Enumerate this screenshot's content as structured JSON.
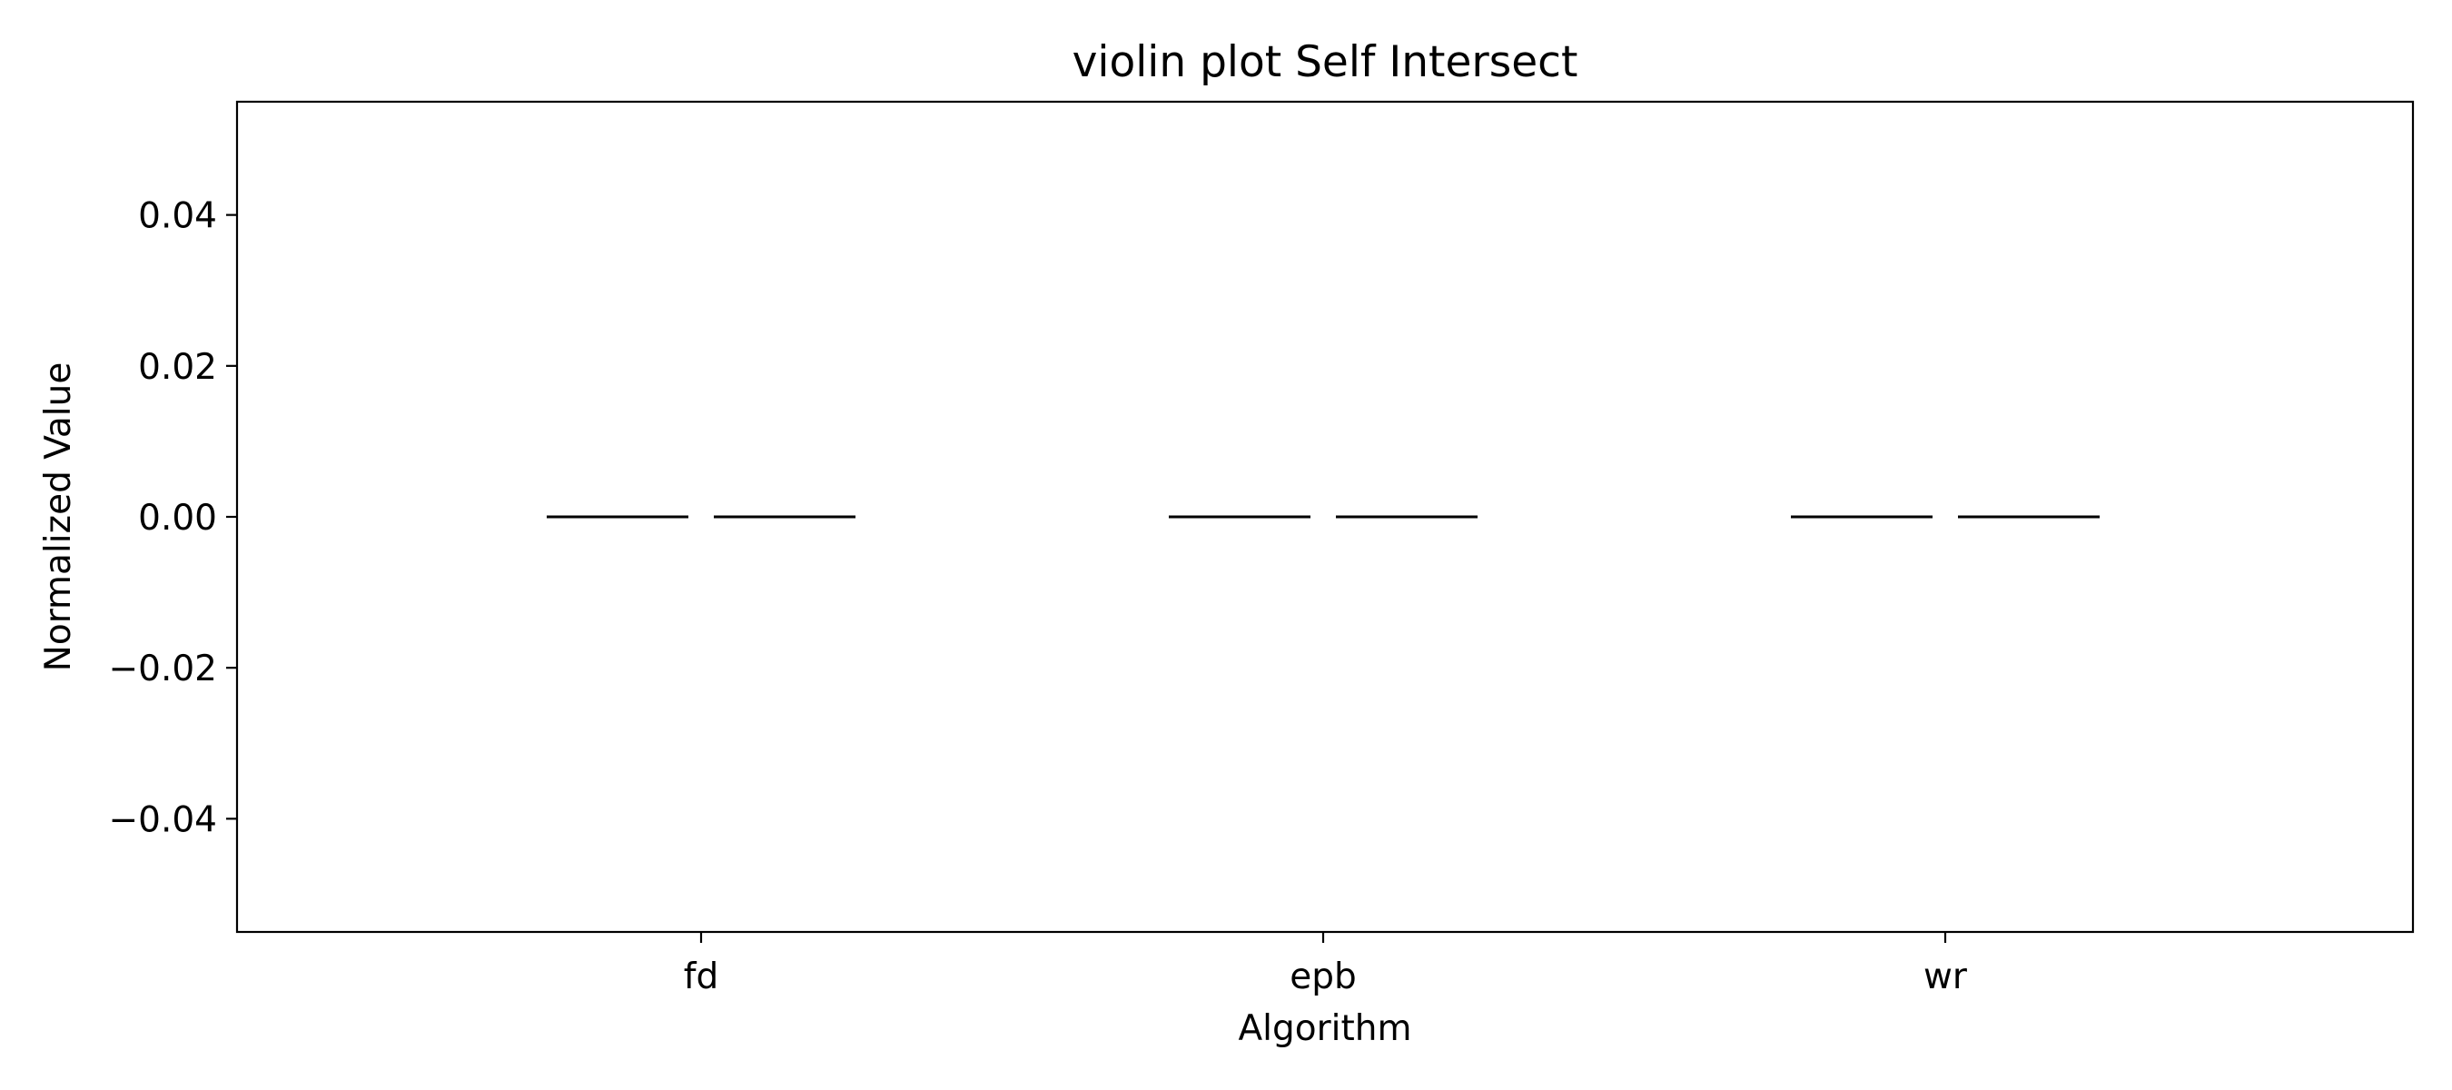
{
  "chart_data": {
    "type": "violin",
    "title": "violin plot Self Intersect",
    "xlabel": "Algorithm",
    "ylabel": "Normalized Value",
    "categories": [
      "fd",
      "epb",
      "wr"
    ],
    "ylim": [
      -0.055,
      0.055
    ],
    "yticks": [
      -0.04,
      -0.02,
      0.0,
      0.02,
      0.04
    ],
    "ytick_labels": [
      "−0.04",
      "−0.02",
      "0.00",
      "0.02",
      "0.04"
    ],
    "series": [
      {
        "values": [
          0.0,
          0.0,
          0.0
        ]
      },
      {
        "values": [
          0.0,
          0.0,
          0.0
        ]
      }
    ],
    "grid": false,
    "legend": "none",
    "colors": {
      "axes": "#000000",
      "background": "#ffffff",
      "marks": "#000000"
    }
  }
}
